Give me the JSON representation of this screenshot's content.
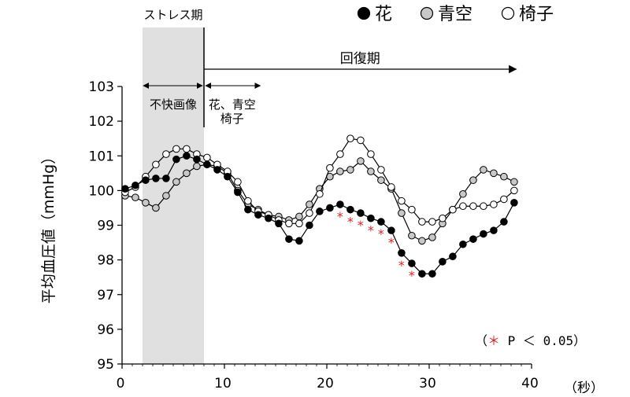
{
  "chart_data": {
    "type": "line",
    "title": "",
    "xlabel": "",
    "ylabel": "平均血圧値（mmHg）",
    "x_unit": "（秒）",
    "xlim": [
      0,
      40
    ],
    "ylim": [
      95,
      103
    ],
    "x_ticks": [
      "0",
      "10",
      "20",
      "30",
      "40"
    ],
    "y_ticks": [
      "95",
      "96",
      "97",
      "98",
      "99",
      "100",
      "101",
      "102",
      "103"
    ],
    "grid": false,
    "legend_position": "top-right",
    "legend": [
      {
        "symbol": "●",
        "label": "花"
      },
      {
        "symbol": "●",
        "label": "青空"
      },
      {
        "symbol": "○",
        "label": "椅子"
      }
    ],
    "series": [
      {
        "name": "花",
        "color": "#000000",
        "x": [
          0.3,
          1.3,
          2.3,
          3.3,
          4.3,
          5.3,
          6.3,
          7.3,
          8.3,
          9.3,
          10.3,
          11.3,
          12.3,
          13.3,
          14.3,
          15.3,
          16.3,
          17.3,
          18.3,
          19.3,
          20.3,
          21.3,
          22.3,
          23.3,
          24.3,
          25.3,
          26.3,
          27.3,
          28.3,
          29.3,
          30.3,
          31.3,
          32.3,
          33.3,
          34.3,
          35.3,
          36.3,
          37.3,
          38.3
        ],
        "y": [
          100.05,
          100.15,
          100.3,
          100.35,
          100.35,
          100.9,
          101.0,
          100.9,
          100.75,
          100.6,
          100.4,
          99.95,
          99.45,
          99.3,
          99.2,
          99.05,
          98.6,
          98.55,
          99.0,
          99.4,
          99.5,
          99.6,
          99.45,
          99.35,
          99.2,
          99.1,
          98.85,
          98.2,
          97.9,
          97.6,
          97.6,
          97.95,
          98.1,
          98.45,
          98.6,
          98.75,
          98.85,
          99.1,
          99.65
        ]
      },
      {
        "name": "青空",
        "color": "#c8c8c8",
        "x": [
          0.3,
          1.3,
          2.3,
          3.3,
          4.3,
          5.3,
          6.3,
          7.3,
          8.3,
          9.3,
          10.3,
          11.3,
          12.3,
          13.3,
          14.3,
          15.3,
          16.3,
          17.3,
          18.3,
          19.3,
          20.3,
          21.3,
          22.3,
          23.3,
          24.3,
          25.3,
          26.3,
          27.3,
          28.3,
          29.3,
          30.3,
          31.3,
          32.3,
          33.3,
          34.3,
          35.3,
          36.3,
          37.3,
          38.3
        ],
        "y": [
          99.85,
          99.8,
          99.65,
          99.5,
          99.85,
          100.25,
          100.5,
          100.7,
          100.75,
          100.7,
          100.5,
          100.0,
          99.6,
          99.45,
          99.3,
          99.25,
          99.15,
          99.25,
          99.6,
          100.05,
          100.4,
          100.55,
          100.6,
          100.85,
          100.55,
          100.3,
          100.05,
          99.35,
          98.7,
          98.55,
          98.65,
          99.05,
          99.45,
          99.9,
          100.3,
          100.6,
          100.5,
          100.4,
          100.25
        ]
      },
      {
        "name": "椅子",
        "color": "#ffffff",
        "x": [
          0.3,
          1.3,
          2.3,
          3.3,
          4.3,
          5.3,
          6.3,
          7.3,
          8.3,
          9.3,
          10.3,
          11.3,
          12.3,
          13.3,
          14.3,
          15.3,
          16.3,
          17.3,
          18.3,
          19.3,
          20.3,
          21.3,
          22.3,
          23.3,
          24.3,
          25.3,
          26.3,
          27.3,
          28.3,
          29.3,
          30.3,
          31.3,
          32.3,
          33.3,
          34.3,
          35.3,
          36.3,
          37.3,
          38.3
        ],
        "y": [
          99.95,
          100.1,
          100.4,
          100.75,
          101.05,
          101.2,
          101.2,
          101.05,
          100.95,
          100.75,
          100.55,
          100.25,
          99.7,
          99.4,
          99.3,
          99.15,
          99.05,
          99.05,
          99.35,
          99.9,
          100.65,
          101.05,
          101.5,
          101.45,
          101.05,
          100.6,
          100.1,
          99.7,
          99.45,
          99.1,
          99.1,
          99.2,
          99.45,
          99.55,
          99.55,
          99.55,
          99.6,
          99.75,
          100.0
        ]
      }
    ],
    "significance": {
      "series": "花",
      "symbol": "*",
      "x": [
        21.3,
        22.3,
        23.3,
        24.3,
        25.3,
        26.3,
        27.3,
        28.3
      ],
      "legend_text": "（＊ P ＜ 0.05）"
    },
    "annotations": {
      "stress_label": "ストレス期",
      "stress_range": [
        2,
        8
      ],
      "recovery_label": "回復期",
      "recovery_range": [
        8,
        38.5
      ],
      "unpleasant_label": "不快画像",
      "unpleasant_range": [
        2,
        8
      ],
      "stimulus_label_line1": "花、青空",
      "stimulus_label_line2": "椅子",
      "stimulus_range": [
        8,
        13.5
      ]
    }
  }
}
